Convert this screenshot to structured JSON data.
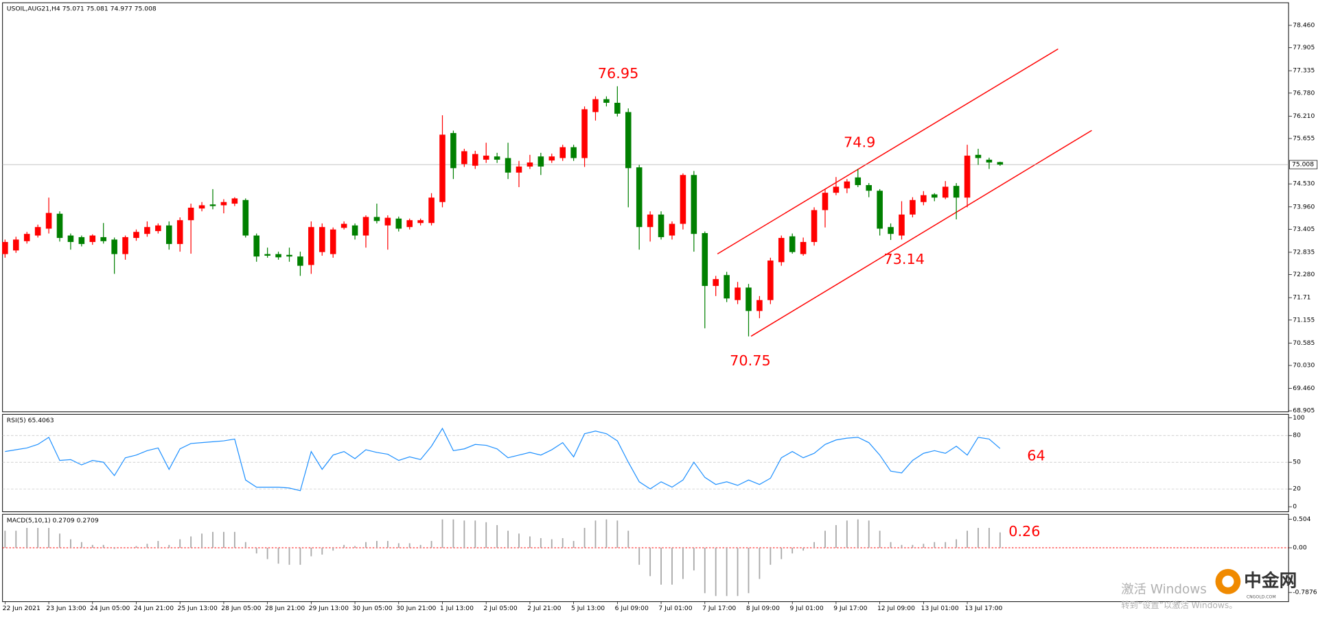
{
  "chart_data": [
    {
      "type": "candlestick",
      "title": "USOIL,AUG21,H4",
      "categories": [
        "22 Jun 2021",
        null,
        null,
        null,
        "23 Jun 13:00",
        null,
        null,
        null,
        "24 Jun 05:00",
        null,
        null,
        null,
        "24 Jun 21:00",
        null,
        null,
        null,
        "25 Jun 13:00",
        null,
        null,
        null,
        "28 Jun 05:00",
        null,
        null,
        null,
        "28 Jun 21:00",
        null,
        null,
        null,
        "29 Jun 13:00",
        null,
        null,
        null,
        "30 Jun 05:00",
        null,
        null,
        null,
        "30 Jun 21:00",
        null,
        null,
        null,
        "1 Jul 13:00",
        null,
        null,
        null,
        "2 Jul 05:00",
        null,
        null,
        null,
        "2 Jul 21:00",
        null,
        null,
        null,
        "5 Jul 13:00",
        null,
        null,
        null,
        "6 Jul 09:00",
        null,
        null,
        null,
        "7 Jul 01:00",
        null,
        null,
        null,
        "7 Jul 17:00",
        null,
        null,
        null,
        "8 Jul 09:00",
        null,
        null,
        null,
        "9 Jul 01:00",
        null,
        null,
        null,
        "9 Jul 17:00",
        null,
        null,
        null,
        "12 Jul 09:00",
        null,
        null,
        null,
        "13 Jul 01:00",
        null,
        null,
        null,
        "13 Jul 17:00",
        null,
        null,
        null
      ],
      "open": [
        72.79,
        72.88,
        73.11,
        73.25,
        73.42,
        73.79,
        73.25,
        73.21,
        73.09,
        73.21,
        73.15,
        72.79,
        73.19,
        73.29,
        73.36,
        73.5,
        73.04,
        73.63,
        73.92,
        74.02,
        74.0,
        74.04,
        74.13,
        73.25,
        72.79,
        72.79,
        72.77,
        72.73,
        72.52,
        72.84,
        72.79,
        73.44,
        73.5,
        73.25,
        73.71,
        73.5,
        73.67,
        73.46,
        73.56,
        73.56,
        74.08,
        75.79,
        75.02,
        74.98,
        75.13,
        75.21,
        75.17,
        74.81,
        74.96,
        75.21,
        75.11,
        75.17,
        75.44,
        75.17,
        76.31,
        76.63,
        76.54,
        76.31,
        74.94,
        73.46,
        73.77,
        73.25,
        73.54,
        74.75,
        73.31,
        72.0,
        72.27,
        71.65,
        71.96,
        71.38,
        71.65,
        72.59,
        73.23,
        72.79,
        73.09,
        73.88,
        74.31,
        74.42,
        74.69,
        74.5,
        74.36,
        73.46,
        73.25,
        73.77,
        74.08,
        74.27,
        74.19,
        74.48,
        74.19,
        75.25,
        75.13,
        75.071
      ],
      "high": [
        73.15,
        73.22,
        73.34,
        73.52,
        74.19,
        73.85,
        73.3,
        73.25,
        73.28,
        73.56,
        73.2,
        73.25,
        73.4,
        73.6,
        73.55,
        73.6,
        73.7,
        74.04,
        74.08,
        74.4,
        74.15,
        74.2,
        74.17,
        73.3,
        72.95,
        72.85,
        72.95,
        72.85,
        73.6,
        73.55,
        73.45,
        73.6,
        73.55,
        73.75,
        74.04,
        73.75,
        73.72,
        73.67,
        73.67,
        74.3,
        76.23,
        75.85,
        75.4,
        75.35,
        75.55,
        75.3,
        75.55,
        75.1,
        75.25,
        75.3,
        75.28,
        75.5,
        75.5,
        76.45,
        76.7,
        76.7,
        76.95,
        76.4,
        75.0,
        73.85,
        73.85,
        73.6,
        74.79,
        74.85,
        73.35,
        72.25,
        72.35,
        72.1,
        72.05,
        71.75,
        72.7,
        73.25,
        73.3,
        73.2,
        73.95,
        74.4,
        74.7,
        74.65,
        74.9,
        74.55,
        74.4,
        73.55,
        74.1,
        74.2,
        74.35,
        74.3,
        74.6,
        74.55,
        75.5,
        75.4,
        75.18,
        75.081
      ],
      "low": [
        72.7,
        72.82,
        73.05,
        73.2,
        73.3,
        73.1,
        72.9,
        72.98,
        73.02,
        73.05,
        72.3,
        72.65,
        73.12,
        73.22,
        73.3,
        72.9,
        72.85,
        72.8,
        73.85,
        73.9,
        73.8,
        73.98,
        73.2,
        72.6,
        72.7,
        72.65,
        72.6,
        72.25,
        72.3,
        72.75,
        72.7,
        73.4,
        73.15,
        72.95,
        73.55,
        72.9,
        73.35,
        73.4,
        73.5,
        73.5,
        73.95,
        74.65,
        74.95,
        74.9,
        75.05,
        75.05,
        74.65,
        74.45,
        74.9,
        74.75,
        75.05,
        75.1,
        75.1,
        74.95,
        76.1,
        76.45,
        76.2,
        73.95,
        72.9,
        73.1,
        73.15,
        73.15,
        73.4,
        72.85,
        70.95,
        71.75,
        71.6,
        71.55,
        70.75,
        71.2,
        71.55,
        72.5,
        72.8,
        72.75,
        73.0,
        73.45,
        74.25,
        74.3,
        74.45,
        74.2,
        73.25,
        73.14,
        73.15,
        73.7,
        74.0,
        74.1,
        74.15,
        73.65,
        73.95,
        75.0,
        74.9,
        74.977
      ],
      "close": [
        73.09,
        73.15,
        73.29,
        73.46,
        73.81,
        73.19,
        73.09,
        73.04,
        73.25,
        73.11,
        72.79,
        73.21,
        73.34,
        73.46,
        73.5,
        73.04,
        73.63,
        73.94,
        74.0,
        73.98,
        74.08,
        74.17,
        73.25,
        72.73,
        72.75,
        72.71,
        72.73,
        72.5,
        73.46,
        73.46,
        73.4,
        73.54,
        73.25,
        73.71,
        73.61,
        73.69,
        73.42,
        73.63,
        73.63,
        74.19,
        75.75,
        74.92,
        75.34,
        75.27,
        75.23,
        75.13,
        74.81,
        74.96,
        75.06,
        74.96,
        75.21,
        75.44,
        75.17,
        76.38,
        76.63,
        76.54,
        76.27,
        74.92,
        73.46,
        73.77,
        73.21,
        73.54,
        74.75,
        73.29,
        72.0,
        72.17,
        71.69,
        71.96,
        71.38,
        71.65,
        72.63,
        73.19,
        72.84,
        73.09,
        73.88,
        74.31,
        74.46,
        74.59,
        74.5,
        74.36,
        73.42,
        73.29,
        73.77,
        74.13,
        74.25,
        74.19,
        74.46,
        74.19,
        75.23,
        75.17,
        75.06,
        75.008
      ],
      "up_color": "#ff0000",
      "down_color": "#008000",
      "ylim": [
        68.88,
        79.02
      ],
      "yticks": [
        {
          "value": 78.46,
          "label": "78.460"
        },
        77.905,
        77.335,
        {
          "value": 76.78,
          "label": "76.780"
        },
        {
          "value": 76.21,
          "label": "76.210"
        },
        75.655,
        {
          "value": 74.53,
          "label": "74.530"
        },
        {
          "value": 73.96,
          "label": "73.960"
        },
        73.405,
        72.835,
        {
          "value": 72.28,
          "label": "72.280"
        },
        71.71,
        71.155,
        70.585,
        {
          "value": 70.03,
          "label": "70.030"
        },
        {
          "value": 69.46,
          "label": "69.460"
        },
        68.905
      ],
      "annotations": [
        "76.95",
        "74.9",
        "73.14",
        "70.75"
      ]
    },
    {
      "type": "line",
      "title": "RSI(5)",
      "color": "#1e90ff",
      "values": [
        62,
        64,
        66,
        70,
        78,
        52,
        53,
        47,
        52,
        50,
        35,
        55,
        58,
        63,
        66,
        42,
        65,
        71,
        72,
        73,
        74,
        76,
        30,
        22,
        22,
        22,
        21,
        18,
        62,
        42,
        58,
        62,
        54,
        64,
        61,
        59,
        52,
        56,
        53,
        68,
        88,
        63,
        65,
        70,
        69,
        65,
        55,
        58,
        61,
        58,
        64,
        72,
        56,
        82,
        85,
        82,
        74,
        50,
        28,
        20,
        28,
        22,
        30,
        50,
        33,
        25,
        28,
        24,
        30,
        25,
        32,
        55,
        62,
        55,
        60,
        70,
        75,
        77,
        78,
        72,
        58,
        40,
        38,
        52,
        60,
        63,
        60,
        68,
        58,
        78,
        76,
        65.4063
      ],
      "ylim": [
        0,
        100
      ],
      "yticks": [
        100,
        80,
        50,
        20,
        0
      ],
      "annotations": [
        "64"
      ]
    },
    {
      "type": "bar",
      "title": "MACD(5,10,1)",
      "color": "#a9a9a9",
      "zero_color": "#ff0000",
      "values": [
        0.3,
        0.3,
        0.35,
        0.35,
        0.35,
        0.25,
        0.15,
        0.1,
        0.05,
        0.05,
        -0.02,
        0.0,
        0.03,
        0.07,
        0.12,
        0.05,
        0.15,
        0.2,
        0.25,
        0.28,
        0.28,
        0.28,
        0.1,
        -0.1,
        -0.2,
        -0.28,
        -0.3,
        -0.3,
        -0.15,
        -0.12,
        -0.05,
        0.05,
        0.03,
        0.1,
        0.12,
        0.12,
        0.08,
        0.08,
        0.05,
        0.12,
        0.5,
        0.5,
        0.48,
        0.48,
        0.45,
        0.4,
        0.3,
        0.25,
        0.2,
        0.17,
        0.15,
        0.17,
        0.12,
        0.35,
        0.48,
        0.5,
        0.48,
        0.3,
        -0.3,
        -0.5,
        -0.65,
        -0.65,
        -0.55,
        -0.4,
        -0.8,
        -0.85,
        -0.85,
        -0.85,
        -0.8,
        -0.55,
        -0.3,
        -0.2,
        -0.1,
        -0.05,
        0.1,
        0.3,
        0.4,
        0.48,
        0.5,
        0.48,
        0.3,
        0.1,
        0.05,
        0.05,
        0.07,
        0.1,
        0.1,
        0.15,
        0.3,
        0.35,
        0.35,
        0.2709
      ],
      "signal": 0.2709,
      "ylim": [
        -0.95,
        0.59
      ],
      "yticks": [
        0.504,
        {
          "value": 0,
          "label": "0.00"
        },
        {
          "value": -0.7876,
          "label": "-0.7876"
        }
      ],
      "annotations": [
        "0.26"
      ]
    }
  ],
  "overlay": {
    "activation_title": "激活 Windows",
    "activation_hint": "转到“设置”以激活 Windows。",
    "logo": "中金网",
    "logo_url": "CNGOLD.COM"
  }
}
